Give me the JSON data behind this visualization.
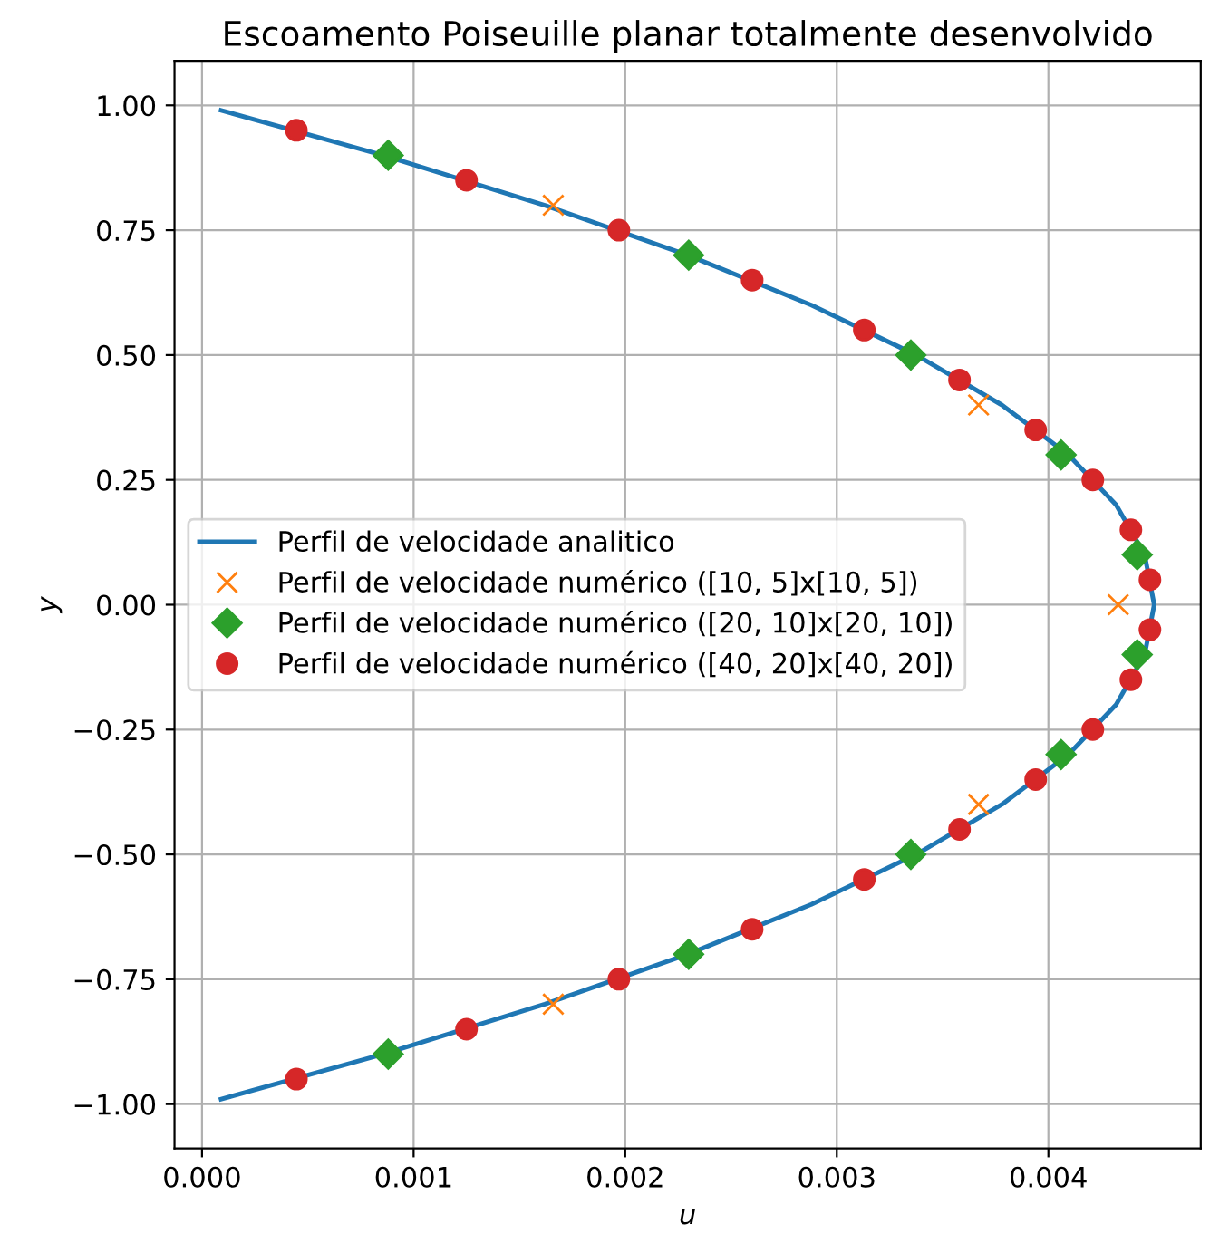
{
  "chart_data": {
    "type": "scatter",
    "title": "Escoamento Poiseuille planar totalmente desenvolvido",
    "xlabel": "u",
    "ylabel": "y",
    "xlim": [
      -0.00013,
      0.00472
    ],
    "ylim": [
      -1.089,
      1.089
    ],
    "xticks": [
      {
        "value": 0,
        "label": "0.000"
      },
      {
        "value": 0.001,
        "label": "0.001"
      },
      {
        "value": 0.002,
        "label": "0.002"
      },
      {
        "value": 0.003,
        "label": "0.003"
      },
      {
        "value": 0.004,
        "label": "0.004"
      }
    ],
    "yticks": [
      {
        "value": -1,
        "label": "−1.00"
      },
      {
        "value": -0.75,
        "label": "−0.75"
      },
      {
        "value": -0.5,
        "label": "−0.50"
      },
      {
        "value": -0.25,
        "label": "−0.25"
      },
      {
        "value": 0,
        "label": "0.00"
      },
      {
        "value": 0.25,
        "label": "0.25"
      },
      {
        "value": 0.5,
        "label": "0.50"
      },
      {
        "value": 0.75,
        "label": "0.75"
      },
      {
        "value": 1,
        "label": "1.00"
      }
    ],
    "grid": true,
    "legend": "center left",
    "series": [
      {
        "name": "Perfil de velocidade analitico",
        "type": "line",
        "color": "#1f77b4",
        "marker": "none",
        "line_style": "solid",
        "x": [
          9e-05,
          0.000855,
          0.00162,
          0.002295,
          0.00288,
          0.003375,
          0.00378,
          0.004095,
          0.00432,
          0.004455,
          0.0045,
          0.004455,
          0.00432,
          0.004095,
          0.00378,
          0.003375,
          0.00288,
          0.002295,
          0.00162,
          0.000855,
          9e-05
        ],
        "values": [
          0.99,
          0.9,
          0.8,
          0.7,
          0.6,
          0.5,
          0.4,
          0.3,
          0.2,
          0.1,
          0,
          -0.1,
          -0.2,
          -0.3,
          -0.4,
          -0.5,
          -0.6,
          -0.7,
          -0.8,
          -0.9,
          -0.99
        ]
      },
      {
        "name": "Perfil de velocidade numérico ([10, 5]x[10, 5])",
        "color": "#ff7f0e",
        "marker": "cross",
        "x": [
          0.00166,
          0.00367,
          0.00433,
          0.00367,
          0.00166
        ],
        "values": [
          0.8,
          0.4,
          0,
          -0.4,
          -0.8
        ]
      },
      {
        "name": "Perfil de velocidade numérico ([20, 10]x[20, 10])",
        "color": "#2ca02c",
        "marker": "diamond",
        "x": [
          0.00088,
          0.0023,
          0.00335,
          0.00406,
          0.00442,
          0.00442,
          0.00406,
          0.00335,
          0.0023,
          0.00088
        ],
        "values": [
          0.9,
          0.7,
          0.5,
          0.3,
          0.1,
          -0.1,
          -0.3,
          -0.5,
          -0.7,
          -0.9
        ]
      },
      {
        "name": "Perfil de velocidade numérico ([40, 20]x[40, 20])",
        "color": "#d62728",
        "marker": "circle",
        "x": [
          0.000446,
          0.00125,
          0.00197,
          0.0026,
          0.00313,
          0.00358,
          0.00394,
          0.00421,
          0.00439,
          0.00448,
          0.00448,
          0.00439,
          0.00421,
          0.00394,
          0.00358,
          0.00313,
          0.0026,
          0.00197,
          0.00125,
          0.000446
        ],
        "values": [
          0.95,
          0.85,
          0.75,
          0.65,
          0.55,
          0.45,
          0.35,
          0.25,
          0.15,
          0.05,
          -0.05,
          -0.15,
          -0.25,
          -0.35,
          -0.45,
          -0.55,
          -0.65,
          -0.75,
          -0.85,
          -0.95
        ]
      }
    ]
  }
}
